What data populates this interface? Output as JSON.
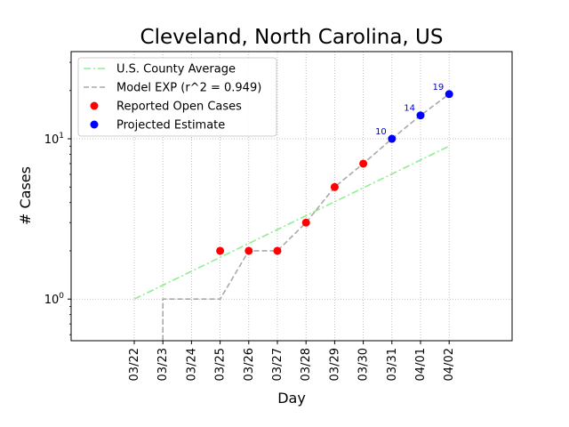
{
  "chart_data": {
    "type": "line",
    "title": "Cleveland, North Carolina, US",
    "xlabel": "Day",
    "ylabel": "# Cases",
    "yscale": "log",
    "ylim": [
      0.55,
      35
    ],
    "grid": true,
    "legend_position": "top-left",
    "categories": [
      "03/22",
      "03/23",
      "03/24",
      "03/25",
      "03/26",
      "03/27",
      "03/28",
      "03/29",
      "03/30",
      "03/31",
      "04/01",
      "04/02"
    ],
    "y_ticks": [
      {
        "value": 1,
        "label": "10^0"
      },
      {
        "value": 10,
        "label": "10^1"
      }
    ],
    "series": [
      {
        "name": "U.S. County Average",
        "style": "dash-dot",
        "color": "#90ee90",
        "points": [
          {
            "x": "03/22",
            "y": 1.0
          },
          {
            "x": "04/02",
            "y": 9.0
          }
        ]
      },
      {
        "name": "Model EXP (r^2 = 0.949)",
        "style": "dashed-step",
        "color": "#a9a9a9",
        "points": [
          {
            "x": "03/23",
            "y": 0.4
          },
          {
            "x": "03/23",
            "y": 1
          },
          {
            "x": "03/25",
            "y": 1
          },
          {
            "x": "03/26",
            "y": 2
          },
          {
            "x": "03/27",
            "y": 2
          },
          {
            "x": "03/28",
            "y": 3
          },
          {
            "x": "03/29",
            "y": 5
          },
          {
            "x": "03/30",
            "y": 7
          },
          {
            "x": "03/31",
            "y": 10
          },
          {
            "x": "04/01",
            "y": 14
          },
          {
            "x": "04/02",
            "y": 19
          }
        ]
      },
      {
        "name": "Reported Open Cases",
        "style": "markers",
        "color": "#ff0000",
        "points": [
          {
            "x": "03/25",
            "y": 2
          },
          {
            "x": "03/26",
            "y": 2
          },
          {
            "x": "03/27",
            "y": 2
          },
          {
            "x": "03/28",
            "y": 3
          },
          {
            "x": "03/29",
            "y": 5
          },
          {
            "x": "03/30",
            "y": 7
          }
        ]
      },
      {
        "name": "Projected Estimate",
        "style": "markers",
        "color": "#0000ff",
        "points": [
          {
            "x": "03/31",
            "y": 10,
            "label": "10"
          },
          {
            "x": "04/01",
            "y": 14,
            "label": "14"
          },
          {
            "x": "04/02",
            "y": 19,
            "label": "19"
          }
        ]
      }
    ]
  }
}
